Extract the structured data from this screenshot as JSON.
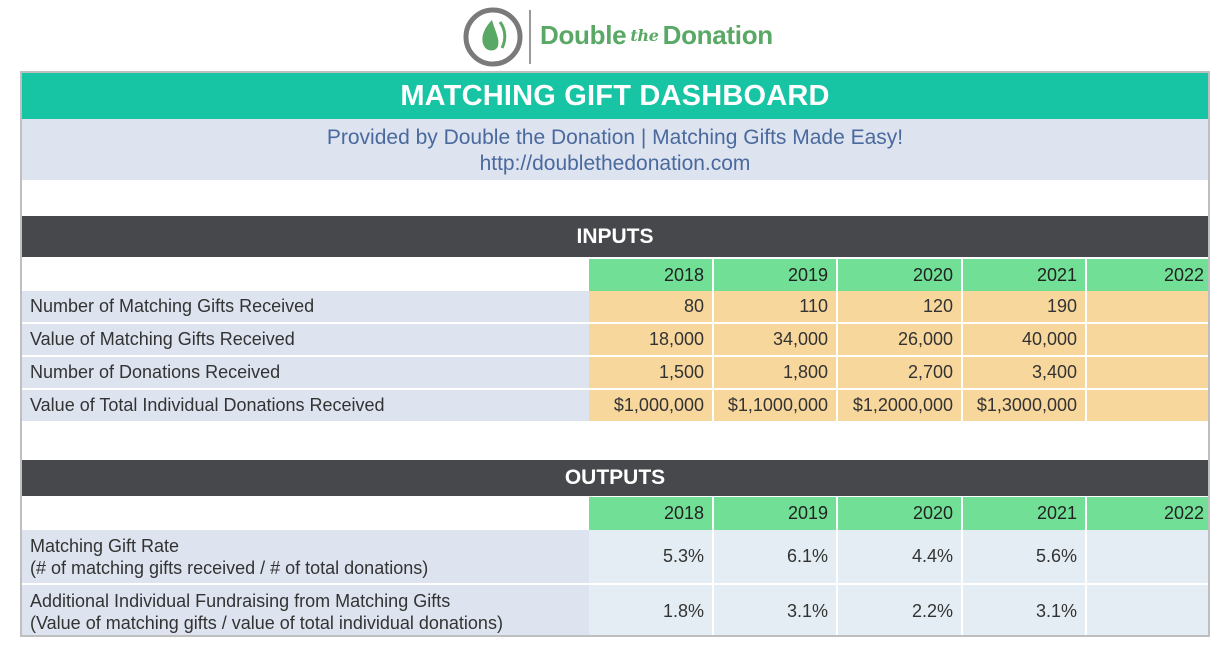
{
  "logo": {
    "brand_pre": "Double",
    "brand_mid": "the",
    "brand_post": "Donation",
    "icon": "leaf-drop-logo-icon",
    "accent": "#5aa865"
  },
  "dashboard": {
    "title": "MATCHING GIFT DASHBOARD",
    "subtitle": "Provided by Double the Donation | Matching Gifts Made Easy!",
    "url": "http://doublethedonation.com",
    "title_color": "#17c4a4"
  },
  "inputs": {
    "heading": "INPUTS",
    "years": [
      "2018",
      "2019",
      "2020",
      "2021",
      "2022"
    ],
    "rows": [
      {
        "label": "Number of Matching Gifts Received",
        "values": [
          "80",
          "110",
          "120",
          "190",
          ""
        ]
      },
      {
        "label": "Value of Matching Gifts Received",
        "values": [
          "18,000",
          "34,000",
          "26,000",
          "40,000",
          ""
        ]
      },
      {
        "label": "Number of Donations Received",
        "values": [
          "1,500",
          "1,800",
          "2,700",
          "3,400",
          ""
        ]
      },
      {
        "label": "Value of Total Individual Donations Received",
        "values": [
          "$1,000,000",
          "$1,1000,000",
          "$1,2000,000",
          "$1,3000,000",
          ""
        ]
      }
    ]
  },
  "outputs": {
    "heading": "OUTPUTS",
    "years": [
      "2018",
      "2019",
      "2020",
      "2021",
      "2022"
    ],
    "rows": [
      {
        "label": "Matching Gift Rate",
        "sublabel": "(# of matching gifts received / # of total donations)",
        "values": [
          "5.3%",
          "6.1%",
          "4.4%",
          "5.6%",
          ""
        ]
      },
      {
        "label": "Additional Individual Fundraising from Matching Gifts",
        "sublabel": "(Value of matching gifts / value of total individual donations)",
        "values": [
          "1.8%",
          "3.1%",
          "2.2%",
          "3.1%",
          ""
        ]
      }
    ]
  }
}
